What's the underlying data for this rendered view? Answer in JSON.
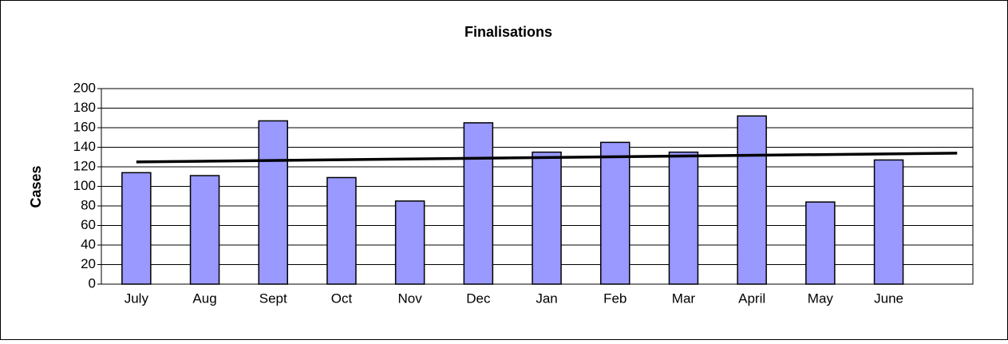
{
  "chart_data": {
    "type": "bar",
    "title": "Finalisations",
    "y_label": "Cases",
    "categories": [
      "July",
      "Aug",
      "Sept",
      "Oct",
      "Nov",
      "Dec",
      "Jan",
      "Feb",
      "Mar",
      "April",
      "May",
      "June",
      null
    ],
    "values": [
      114,
      111,
      167,
      109,
      85,
      165,
      135,
      145,
      135,
      172,
      84,
      127,
      null
    ],
    "color": "#9999ff",
    "trendline": {
      "color": "#000000",
      "values": [
        125,
        134
      ]
    },
    "ylim": [
      0,
      200
    ],
    "yticks": [
      0,
      20,
      40,
      60,
      80,
      100,
      120,
      140,
      160,
      180,
      200
    ],
    "grid": true
  }
}
